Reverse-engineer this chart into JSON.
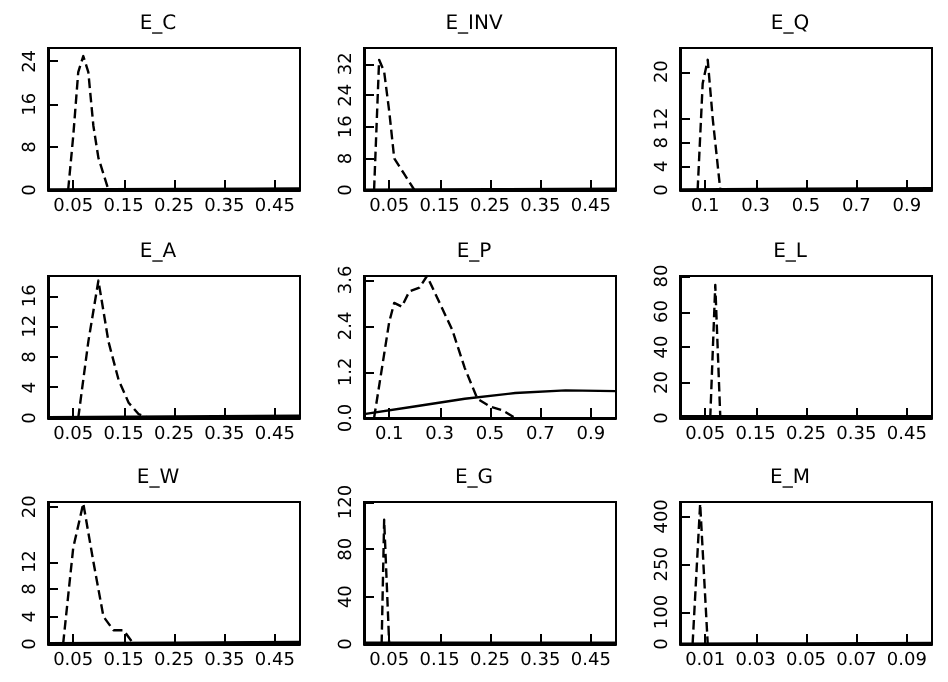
{
  "chart_data": [
    {
      "type": "line",
      "title": "E_C",
      "xlim": [
        0,
        0.5
      ],
      "xticks": [
        0.05,
        0.15,
        0.25,
        0.35,
        0.45
      ],
      "ylim": [
        0,
        26.5
      ],
      "yticks": [
        0,
        8,
        16,
        24
      ],
      "grid": false,
      "marker": "none",
      "series": [
        {
          "color": "#000000",
          "line_style": "dashed",
          "x": [
            0.04,
            0.05,
            0.06,
            0.07,
            0.08,
            0.09,
            0.1,
            0.12
          ],
          "values": [
            0,
            10,
            22,
            25,
            22,
            12,
            6,
            0
          ]
        },
        {
          "color": "#000000",
          "line_style": "solid",
          "x": [
            0,
            0.25,
            0.5
          ],
          "values": [
            0.1,
            0.2,
            0.3
          ]
        }
      ]
    },
    {
      "type": "line",
      "title": "E_INV",
      "xlim": [
        0,
        0.5
      ],
      "xticks": [
        0.05,
        0.15,
        0.25,
        0.35,
        0.45
      ],
      "ylim": [
        0,
        36
      ],
      "yticks": [
        0,
        8,
        16,
        24,
        32
      ],
      "grid": false,
      "marker": "none",
      "series": [
        {
          "color": "#000000",
          "line_style": "dashed",
          "x": [
            0.02,
            0.03,
            0.04,
            0.05,
            0.06,
            0.08,
            0.1
          ],
          "values": [
            0,
            33,
            30,
            20,
            8,
            4,
            0
          ]
        },
        {
          "color": "#000000",
          "line_style": "solid",
          "x": [
            0,
            0.25,
            0.5
          ],
          "values": [
            0.1,
            0.2,
            0.3
          ]
        }
      ]
    },
    {
      "type": "line",
      "title": "E_Q",
      "xlim": [
        0,
        1
      ],
      "xticks": [
        0.1,
        0.3,
        0.5,
        0.7,
        0.9
      ],
      "ylim": [
        0,
        24
      ],
      "yticks": [
        0,
        4,
        8,
        12,
        20
      ],
      "grid": false,
      "marker": "none",
      "series": [
        {
          "color": "#000000",
          "line_style": "dashed",
          "x": [
            0.07,
            0.09,
            0.11,
            0.13,
            0.16
          ],
          "values": [
            0,
            18,
            22,
            12,
            0
          ]
        },
        {
          "color": "#000000",
          "line_style": "solid",
          "x": [
            0,
            0.5,
            1
          ],
          "values": [
            0.1,
            0.2,
            0.3
          ]
        }
      ]
    },
    {
      "type": "line",
      "title": "E_A",
      "xlim": [
        0,
        0.5
      ],
      "xticks": [
        0.05,
        0.15,
        0.25,
        0.35,
        0.45
      ],
      "ylim": [
        0,
        18.6
      ],
      "yticks": [
        0,
        4,
        8,
        12,
        16
      ],
      "grid": false,
      "marker": "none",
      "series": [
        {
          "color": "#000000",
          "line_style": "dashed",
          "x": [
            0.06,
            0.08,
            0.1,
            0.12,
            0.14,
            0.16,
            0.18,
            0.2
          ],
          "values": [
            0,
            10,
            18,
            10,
            5,
            2,
            0.5,
            0
          ]
        },
        {
          "color": "#000000",
          "line_style": "solid",
          "x": [
            0,
            0.25,
            0.5
          ],
          "values": [
            0.1,
            0.2,
            0.3
          ]
        }
      ]
    },
    {
      "type": "line",
      "title": "E_P",
      "xlim": [
        0,
        1
      ],
      "xticks": [
        0.1,
        0.3,
        0.5,
        0.7,
        0.9
      ],
      "ylim": [
        0,
        3.7
      ],
      "yticks": [
        {
          "value": 0,
          "label": "0.0"
        },
        1.2,
        2.4,
        3.6
      ],
      "grid": false,
      "marker": "none",
      "series": [
        {
          "color": "#000000",
          "line_style": "dashed",
          "x": [
            0.04,
            0.1,
            0.12,
            0.15,
            0.18,
            0.22,
            0.25,
            0.3,
            0.35,
            0.4,
            0.45,
            0.5,
            0.55,
            0.6
          ],
          "values": [
            0,
            2.5,
            3,
            2.9,
            3.3,
            3.4,
            3.7,
            3,
            2.3,
            1.3,
            0.5,
            0.3,
            0.2,
            0
          ]
        },
        {
          "color": "#000000",
          "line_style": "solid",
          "x": [
            0,
            0.2,
            0.4,
            0.6,
            0.8,
            1
          ],
          "values": [
            0.1,
            0.3,
            0.5,
            0.65,
            0.72,
            0.7
          ]
        }
      ]
    },
    {
      "type": "line",
      "title": "E_L",
      "xlim": [
        0,
        0.5
      ],
      "xticks": [
        0.05,
        0.15,
        0.25,
        0.35,
        0.45
      ],
      "ylim": [
        0,
        80
      ],
      "yticks": [
        0,
        20,
        40,
        60,
        80
      ],
      "grid": false,
      "marker": "none",
      "series": [
        {
          "color": "#000000",
          "line_style": "dashed",
          "x": [
            0.06,
            0.07,
            0.08
          ],
          "values": [
            0,
            75,
            0
          ]
        },
        {
          "color": "#000000",
          "line_style": "solid",
          "x": [
            0,
            0.25,
            0.5
          ],
          "values": [
            1,
            1,
            1
          ]
        }
      ]
    },
    {
      "type": "line",
      "title": "E_W",
      "xlim": [
        0,
        0.5
      ],
      "xticks": [
        0.05,
        0.15,
        0.25,
        0.35,
        0.45
      ],
      "ylim": [
        0,
        20.7
      ],
      "yticks": [
        0,
        4,
        8,
        12,
        20
      ],
      "grid": false,
      "marker": "none",
      "series": [
        {
          "color": "#000000",
          "line_style": "dashed",
          "x": [
            0.03,
            0.05,
            0.07,
            0.09,
            0.11,
            0.13,
            0.15,
            0.17
          ],
          "values": [
            0,
            14,
            20.5,
            12,
            4,
            2,
            2,
            0
          ]
        },
        {
          "color": "#000000",
          "line_style": "solid",
          "x": [
            0,
            0.25,
            0.5
          ],
          "values": [
            0.1,
            0.2,
            0.3
          ]
        }
      ]
    },
    {
      "type": "line",
      "title": "E_G",
      "xlim": [
        0,
        0.5
      ],
      "xticks": [
        0.05,
        0.15,
        0.25,
        0.35,
        0.45
      ],
      "ylim": [
        0,
        120
      ],
      "yticks": [
        0,
        40,
        80,
        120
      ],
      "grid": false,
      "marker": "none",
      "series": [
        {
          "color": "#000000",
          "line_style": "dashed",
          "x": [
            0.035,
            0.04,
            0.05
          ],
          "values": [
            0,
            105,
            0
          ]
        },
        {
          "color": "#000000",
          "line_style": "solid",
          "x": [
            0,
            0.25,
            0.5
          ],
          "values": [
            1,
            1,
            1
          ]
        }
      ]
    },
    {
      "type": "line",
      "title": "E_M",
      "xlim": [
        0,
        0.1
      ],
      "xticks": [
        0.01,
        0.03,
        0.05,
        0.07,
        0.09
      ],
      "ylim": [
        0,
        445
      ],
      "yticks": [
        0,
        100,
        250,
        400
      ],
      "grid": false,
      "marker": "none",
      "series": [
        {
          "color": "#000000",
          "line_style": "dashed",
          "x": [
            0.005,
            0.008,
            0.011
          ],
          "values": [
            0,
            440,
            0
          ]
        },
        {
          "color": "#000000",
          "line_style": "solid",
          "x": [
            0,
            0.05,
            0.1
          ],
          "values": [
            1,
            2,
            3
          ]
        }
      ]
    }
  ]
}
